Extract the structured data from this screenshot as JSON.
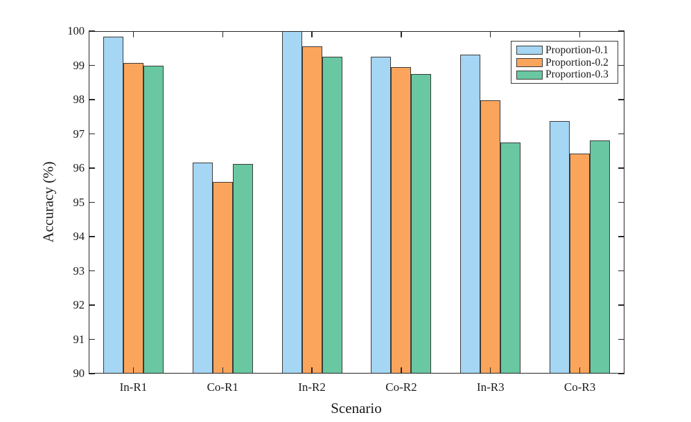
{
  "chart_data": {
    "type": "bar",
    "title": "",
    "xlabel": "Scenario",
    "ylabel": "Accuracy (%)",
    "categories": [
      "In-R1",
      "Co-R1",
      "In-R2",
      "Co-R2",
      "In-R3",
      "Co-R3"
    ],
    "series": [
      {
        "name": "Proportion-0.1",
        "color": "#A5D6F3",
        "values": [
          99.83,
          96.17,
          100.0,
          99.25,
          99.31,
          97.38
        ]
      },
      {
        "name": "Proportion-0.2",
        "color": "#FBA55C",
        "values": [
          99.08,
          95.6,
          99.55,
          98.95,
          97.97,
          96.43
        ]
      },
      {
        "name": "Proportion-0.3",
        "color": "#69C8A1",
        "values": [
          98.98,
          96.12,
          99.25,
          98.75,
          96.74,
          96.8
        ]
      }
    ],
    "ylim": [
      90,
      100
    ],
    "ytick_step": 1,
    "yticks": [
      90,
      91,
      92,
      93,
      94,
      95,
      96,
      97,
      98,
      99,
      100
    ],
    "grid": false,
    "legend_position": "top-right",
    "bar_edge_color": "#3a3a3a",
    "axis_color": "#262626",
    "text_color": "#1a1a1a",
    "background_color": "#ffffff"
  }
}
